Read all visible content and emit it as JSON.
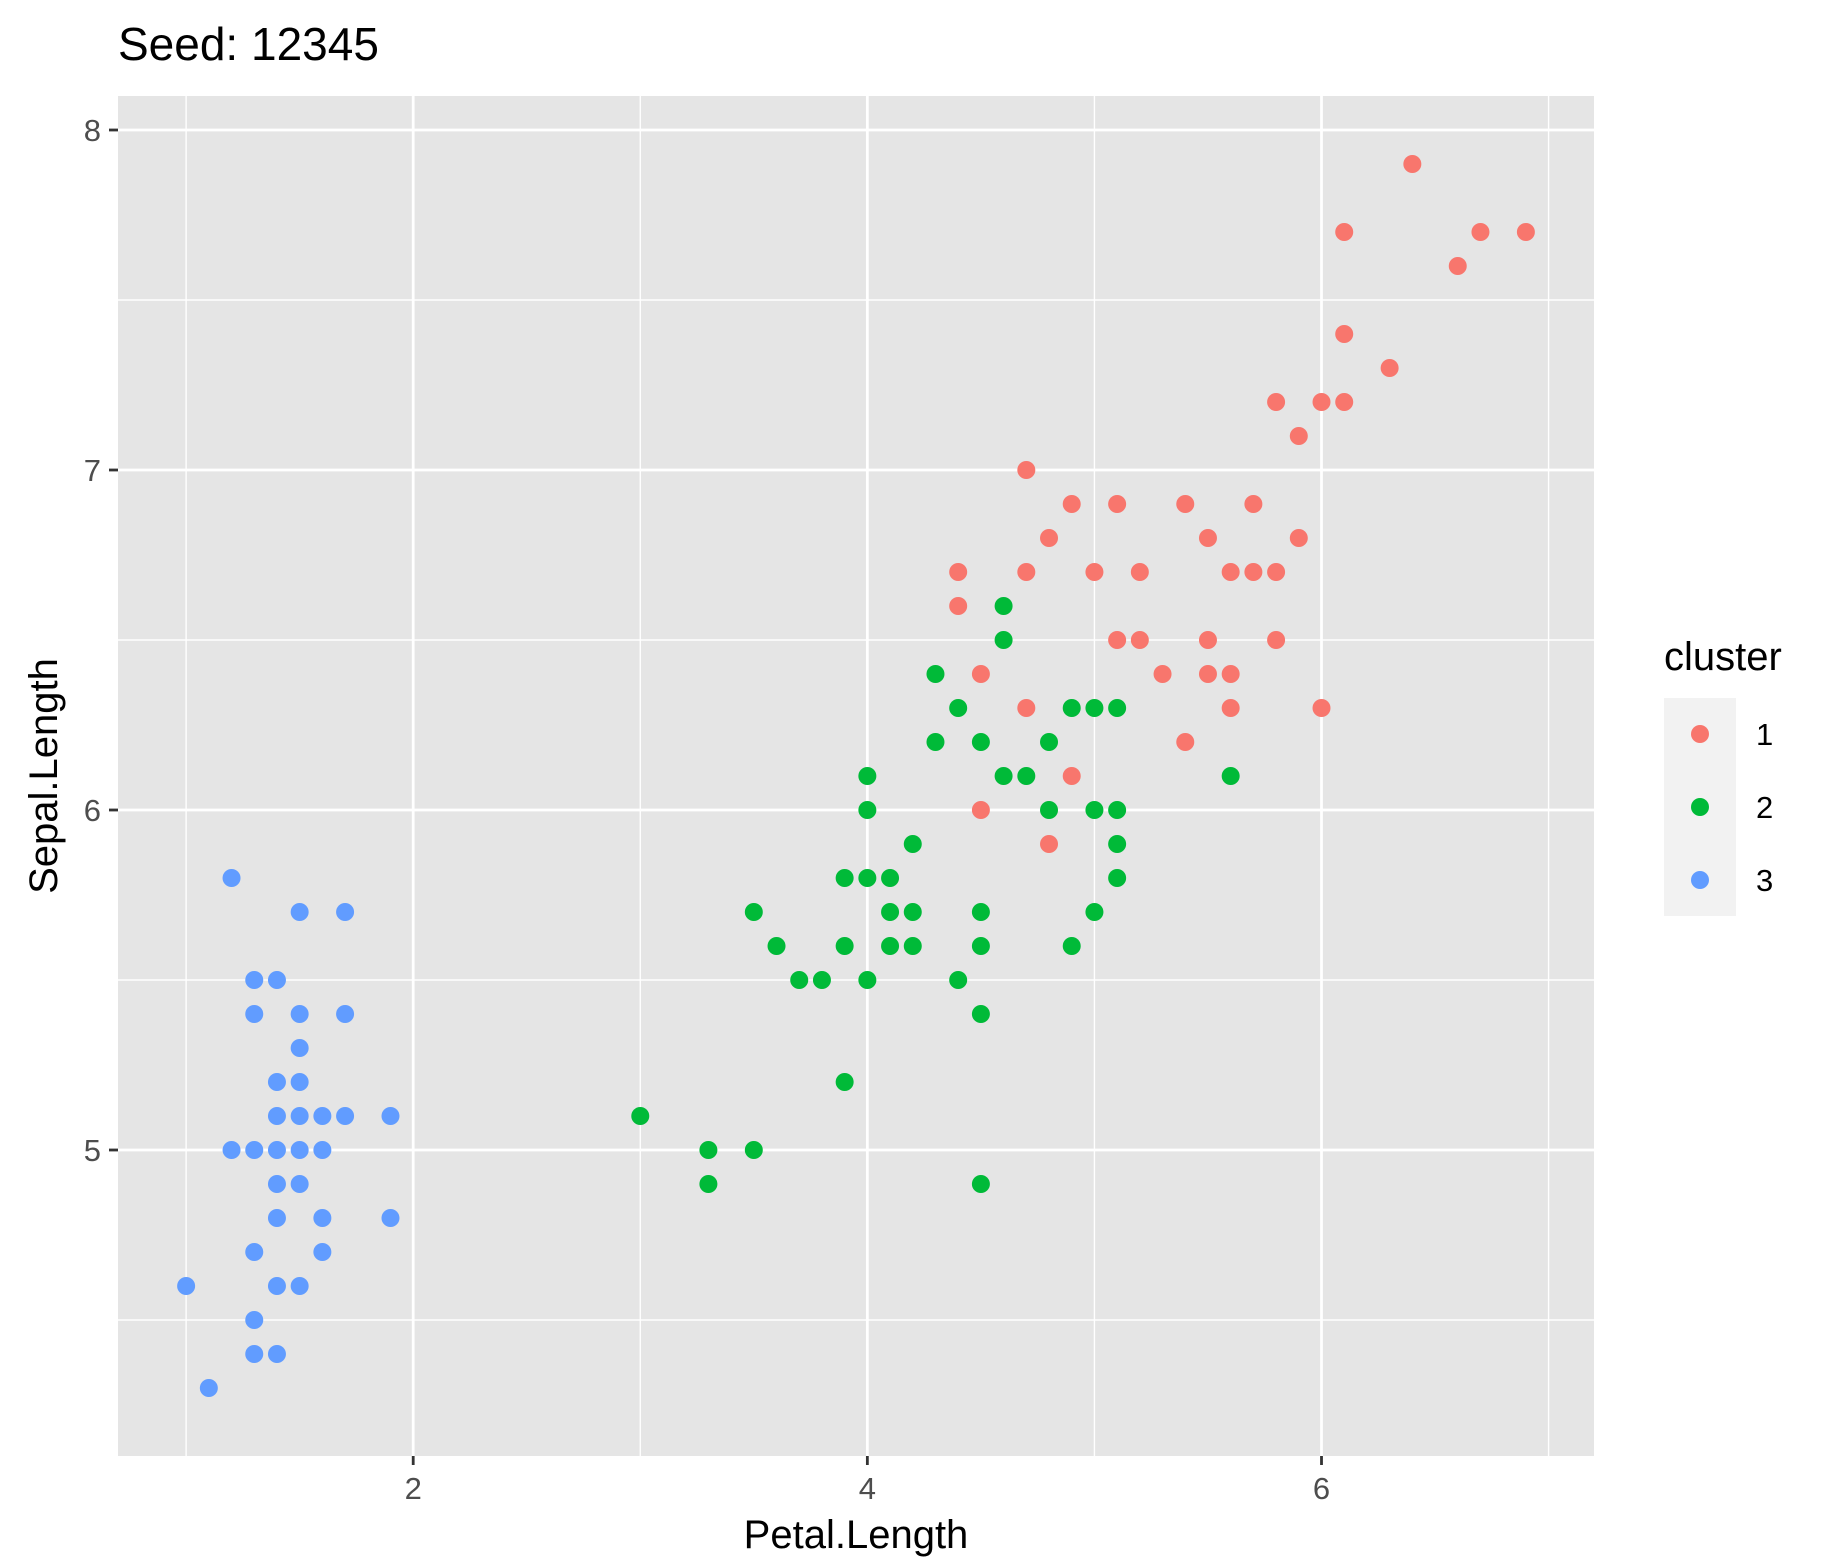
{
  "chart_data": {
    "type": "scatter",
    "title": "Seed: 12345",
    "xlabel": "Petal.Length",
    "ylabel": "Sepal.Length",
    "xlim": [
      0.7,
      7.2
    ],
    "ylim": [
      4.1,
      8.1
    ],
    "x_ticks": [
      2,
      4,
      6
    ],
    "y_ticks": [
      5,
      6,
      7,
      8
    ],
    "x_tick_labels": [
      "2",
      "4",
      "6"
    ],
    "y_tick_labels": [
      "5",
      "6",
      "7",
      "8"
    ],
    "grid": true,
    "background": "#e5e5e5",
    "legend": {
      "title": "cluster",
      "placement": "right",
      "entries": [
        {
          "label": "1",
          "color": "#f8766d"
        },
        {
          "label": "2",
          "color": "#00ba38"
        },
        {
          "label": "3",
          "color": "#619cff"
        }
      ]
    },
    "series": [
      {
        "name": "1",
        "color": "#f8766d",
        "points": [
          [
            6.4,
            7.9
          ],
          [
            6.1,
            7.7
          ],
          [
            6.7,
            7.7
          ],
          [
            6.9,
            7.7
          ],
          [
            6.6,
            7.6
          ],
          [
            6.1,
            7.4
          ],
          [
            6.3,
            7.3
          ],
          [
            5.8,
            7.2
          ],
          [
            6.0,
            7.2
          ],
          [
            6.1,
            7.2
          ],
          [
            5.9,
            7.1
          ],
          [
            4.7,
            7.0
          ],
          [
            4.9,
            6.9
          ],
          [
            5.1,
            6.9
          ],
          [
            5.4,
            6.9
          ],
          [
            5.7,
            6.9
          ],
          [
            4.8,
            6.8
          ],
          [
            5.5,
            6.8
          ],
          [
            5.9,
            6.8
          ],
          [
            4.4,
            6.7
          ],
          [
            4.7,
            6.7
          ],
          [
            5.0,
            6.7
          ],
          [
            5.2,
            6.7
          ],
          [
            5.6,
            6.7
          ],
          [
            5.7,
            6.7
          ],
          [
            5.8,
            6.7
          ],
          [
            4.4,
            6.6
          ],
          [
            5.1,
            6.5
          ],
          [
            5.2,
            6.5
          ],
          [
            5.5,
            6.5
          ],
          [
            5.8,
            6.5
          ],
          [
            4.5,
            6.4
          ],
          [
            5.3,
            6.4
          ],
          [
            5.5,
            6.4
          ],
          [
            5.6,
            6.4
          ],
          [
            4.7,
            6.3
          ],
          [
            5.6,
            6.3
          ],
          [
            6.0,
            6.3
          ],
          [
            5.4,
            6.2
          ],
          [
            4.9,
            6.1
          ],
          [
            4.5,
            6.0
          ],
          [
            4.8,
            5.9
          ]
        ]
      },
      {
        "name": "2",
        "color": "#00ba38",
        "points": [
          [
            4.6,
            6.6
          ],
          [
            4.6,
            6.5
          ],
          [
            4.3,
            6.4
          ],
          [
            4.4,
            6.3
          ],
          [
            4.9,
            6.3
          ],
          [
            5.0,
            6.3
          ],
          [
            5.1,
            6.3
          ],
          [
            4.3,
            6.2
          ],
          [
            4.5,
            6.2
          ],
          [
            4.8,
            6.2
          ],
          [
            4.0,
            6.1
          ],
          [
            4.6,
            6.1
          ],
          [
            4.7,
            6.1
          ],
          [
            5.6,
            6.1
          ],
          [
            4.0,
            6.0
          ],
          [
            4.8,
            6.0
          ],
          [
            5.0,
            6.0
          ],
          [
            5.1,
            6.0
          ],
          [
            4.2,
            5.9
          ],
          [
            5.1,
            5.9
          ],
          [
            3.9,
            5.8
          ],
          [
            4.0,
            5.8
          ],
          [
            4.1,
            5.8
          ],
          [
            5.1,
            5.8
          ],
          [
            3.5,
            5.7
          ],
          [
            4.1,
            5.7
          ],
          [
            4.2,
            5.7
          ],
          [
            4.5,
            5.7
          ],
          [
            5.0,
            5.7
          ],
          [
            3.6,
            5.6
          ],
          [
            3.9,
            5.6
          ],
          [
            4.1,
            5.6
          ],
          [
            4.2,
            5.6
          ],
          [
            4.5,
            5.6
          ],
          [
            4.9,
            5.6
          ],
          [
            3.7,
            5.5
          ],
          [
            3.8,
            5.5
          ],
          [
            4.0,
            5.5
          ],
          [
            4.4,
            5.5
          ],
          [
            4.5,
            5.4
          ],
          [
            3.9,
            5.2
          ],
          [
            3.0,
            5.1
          ],
          [
            3.3,
            5.0
          ],
          [
            3.5,
            5.0
          ],
          [
            3.3,
            4.9
          ],
          [
            4.5,
            4.9
          ]
        ]
      },
      {
        "name": "3",
        "color": "#619cff",
        "points": [
          [
            1.2,
            5.8
          ],
          [
            1.5,
            5.7
          ],
          [
            1.7,
            5.7
          ],
          [
            1.3,
            5.5
          ],
          [
            1.4,
            5.5
          ],
          [
            1.3,
            5.4
          ],
          [
            1.5,
            5.4
          ],
          [
            1.7,
            5.4
          ],
          [
            1.5,
            5.3
          ],
          [
            1.4,
            5.2
          ],
          [
            1.5,
            5.2
          ],
          [
            1.4,
            5.1
          ],
          [
            1.5,
            5.1
          ],
          [
            1.6,
            5.1
          ],
          [
            1.7,
            5.1
          ],
          [
            1.9,
            5.1
          ],
          [
            1.2,
            5.0
          ],
          [
            1.3,
            5.0
          ],
          [
            1.4,
            5.0
          ],
          [
            1.5,
            5.0
          ],
          [
            1.6,
            5.0
          ],
          [
            1.4,
            4.9
          ],
          [
            1.5,
            4.9
          ],
          [
            1.4,
            4.8
          ],
          [
            1.6,
            4.8
          ],
          [
            1.9,
            4.8
          ],
          [
            1.3,
            4.7
          ],
          [
            1.6,
            4.7
          ],
          [
            1.0,
            4.6
          ],
          [
            1.4,
            4.6
          ],
          [
            1.5,
            4.6
          ],
          [
            1.3,
            4.5
          ],
          [
            1.3,
            4.4
          ],
          [
            1.4,
            4.4
          ],
          [
            1.1,
            4.3
          ]
        ]
      }
    ]
  }
}
